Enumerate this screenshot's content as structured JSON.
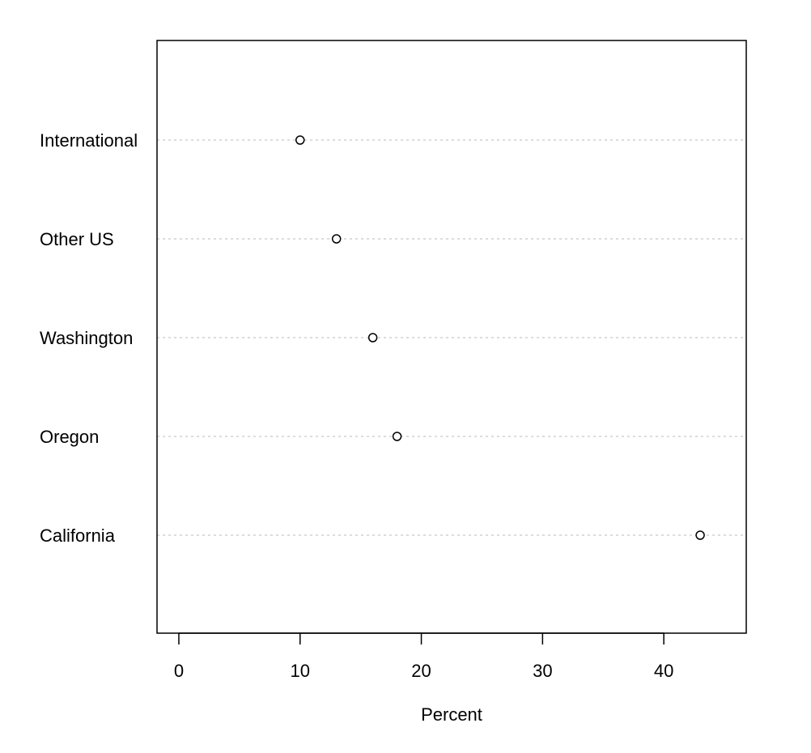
{
  "chart_data": {
    "type": "scatter",
    "title": "",
    "xlabel": "Percent",
    "ylabel": "",
    "categories": [
      "International",
      "Other US",
      "Washington",
      "Oregon",
      "California"
    ],
    "values": [
      10,
      13,
      16,
      18,
      43
    ],
    "xlim": [
      -1.8,
      46.8
    ],
    "xticks": [
      0,
      10,
      20,
      30,
      40
    ],
    "grid": "horizontal dotted guide lines",
    "marker": "open circle",
    "colors": {
      "frame": "#000000",
      "guide": "#c8c8c8",
      "point_stroke": "#000000",
      "point_fill": "#ffffff"
    }
  }
}
